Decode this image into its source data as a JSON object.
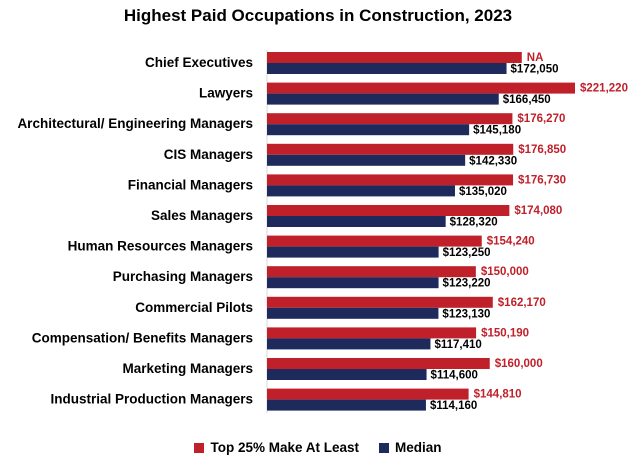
{
  "chart_data": {
    "type": "bar",
    "orientation": "horizontal",
    "title": "Highest Paid Occupations in Construction, 2023",
    "xlabel": "",
    "ylabel": "",
    "xlim": [
      0,
      225000
    ],
    "grid": false,
    "legend_position": "bottom",
    "categories": [
      "Chief Executives",
      "Lawyers",
      "Architectural/ Engineering Managers",
      "CIS Managers",
      "Financial Managers",
      "Sales Managers",
      "Human Resources Managers",
      "Purchasing Managers",
      "Commercial Pilots",
      "Compensation/ Benefits Managers",
      "Marketing Managers",
      "Industrial Production Managers"
    ],
    "series": [
      {
        "name": "Top 25% Make At Least",
        "color": "#c0202a",
        "values": [
          null,
          221220,
          176270,
          176850,
          176730,
          174080,
          154240,
          150000,
          162170,
          150190,
          160000,
          144810
        ],
        "labels": [
          "NA",
          "$221,220",
          "$176,270",
          "$176,850",
          "$176,730",
          "$174,080",
          "$154,240",
          "$150,000",
          "$162,170",
          "$150,190",
          "$160,000",
          "$144,810"
        ],
        "bar_extent_if_missing": 183000
      },
      {
        "name": "Median",
        "color": "#1f2a5c",
        "values": [
          172050,
          166450,
          145180,
          142330,
          135020,
          128320,
          123250,
          123220,
          123130,
          117410,
          114600,
          114160
        ],
        "labels": [
          "$172,050",
          "$166,450",
          "$145,180",
          "$142,330",
          "$135,020",
          "$128,320",
          "$123,250",
          "$123,220",
          "$123,130",
          "$117,410",
          "$114,600",
          "$114,160"
        ]
      }
    ]
  }
}
